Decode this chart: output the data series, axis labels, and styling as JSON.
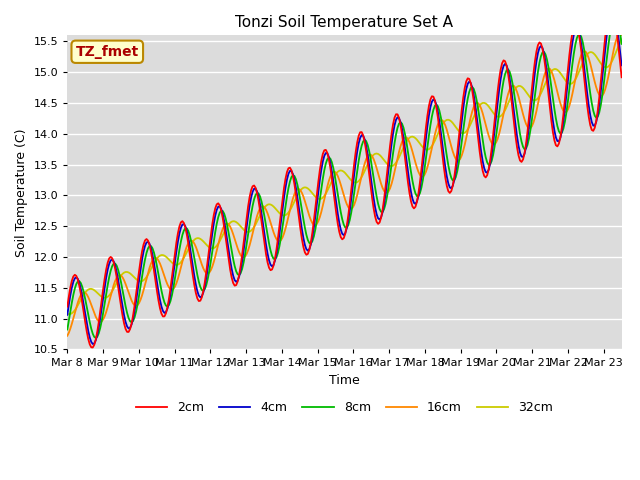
{
  "title": "Tonzi Soil Temperature Set A",
  "xlabel": "Time",
  "ylabel": "Soil Temperature (C)",
  "ylim": [
    10.5,
    15.6
  ],
  "bg_color": "#dcdcdc",
  "legend_labels": [
    "2cm",
    "4cm",
    "8cm",
    "16cm",
    "32cm"
  ],
  "legend_colors": [
    "#ff0000",
    "#0000cc",
    "#00bb00",
    "#ff8800",
    "#cccc00"
  ],
  "annotation_text": "TZ_fmet",
  "annotation_bg": "#ffffcc",
  "annotation_border": "#bb8800",
  "annotation_text_color": "#aa0000",
  "tick_dates": [
    "Mar 8",
    "Mar 9",
    "Mar 10",
    "Mar 11",
    "Mar 12",
    "Mar 13",
    "Mar 14",
    "Mar 15",
    "Mar 16",
    "Mar 17",
    "Mar 18",
    "Mar 19",
    "Mar 20",
    "Mar 21",
    "Mar 22",
    "Mar 23"
  ],
  "n_days": 15.5,
  "samples_per_day": 24
}
